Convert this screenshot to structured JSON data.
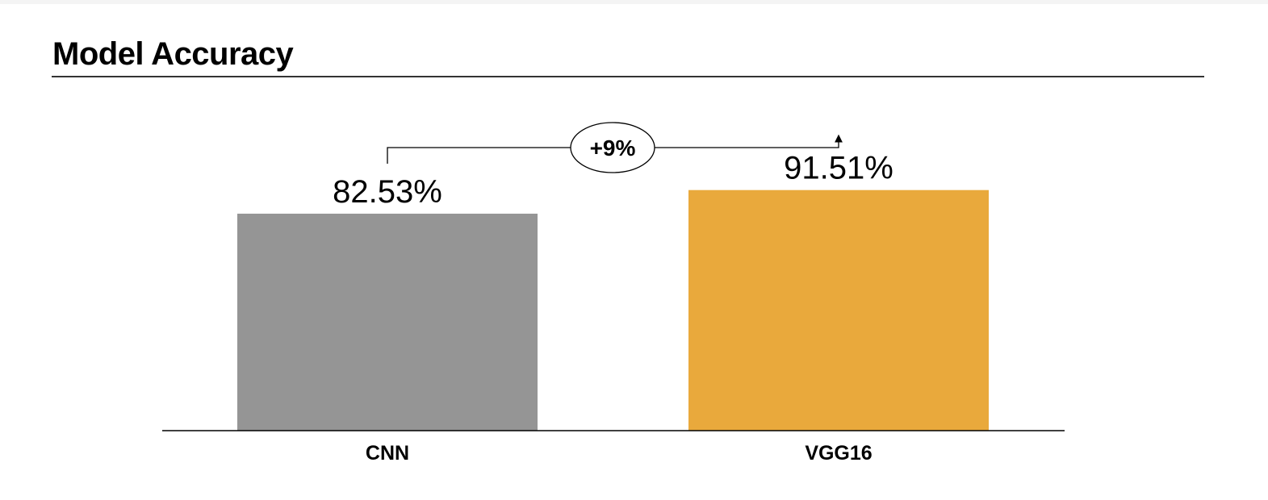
{
  "header": {
    "title": "Model Accuracy"
  },
  "chart_data": {
    "type": "bar",
    "title": "Model Accuracy",
    "categories": [
      "CNN",
      "VGG16"
    ],
    "values": [
      82.53,
      91.51
    ],
    "value_labels": [
      "82.53%",
      "91.51%"
    ],
    "bar_colors": [
      "#959595",
      "#e9a93c"
    ],
    "ylim": [
      0,
      100
    ],
    "grid": false,
    "legend": "none",
    "annotation": {
      "text": "+9%",
      "from": "CNN",
      "to": "VGG16"
    }
  }
}
